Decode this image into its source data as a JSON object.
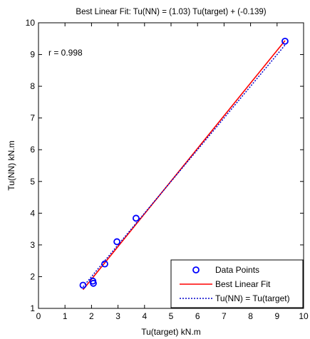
{
  "chart_data": {
    "type": "scatter",
    "title": "Best Linear Fit:  Tu(NN) = (1.03) Tu(target) + (-0.139)",
    "xlabel": "Tu(target) kN.m",
    "ylabel": "Tu(NN) kN.m",
    "xlim": [
      0,
      10
    ],
    "ylim": [
      1,
      10
    ],
    "xticks": [
      "0",
      "1",
      "2",
      "3",
      "4",
      "5",
      "6",
      "7",
      "8",
      "9",
      "10"
    ],
    "yticks": [
      "1",
      "2",
      "3",
      "4",
      "5",
      "6",
      "7",
      "8",
      "9",
      "10"
    ],
    "grid": false,
    "annotation": "r = 0.998",
    "legend_position": "bottom-right",
    "series": [
      {
        "name": "Data Points",
        "kind": "markers",
        "color": "#0000ff",
        "points": [
          {
            "x": 1.68,
            "y": 1.73
          },
          {
            "x": 2.05,
            "y": 1.86
          },
          {
            "x": 2.07,
            "y": 1.79
          },
          {
            "x": 2.5,
            "y": 2.4
          },
          {
            "x": 2.96,
            "y": 3.1
          },
          {
            "x": 3.68,
            "y": 3.84
          },
          {
            "x": 9.3,
            "y": 9.42
          }
        ]
      },
      {
        "name": "Best Linear Fit",
        "kind": "line",
        "color": "#ff0000",
        "dash": "solid",
        "points": [
          {
            "x": 1.68,
            "y": 1.59
          },
          {
            "x": 9.3,
            "y": 9.44
          }
        ]
      },
      {
        "name": "Tu(NN) = Tu(target)",
        "kind": "line",
        "color": "#0000cc",
        "dash": "dotted",
        "points": [
          {
            "x": 1.68,
            "y": 1.68
          },
          {
            "x": 9.3,
            "y": 9.3
          }
        ]
      }
    ]
  }
}
